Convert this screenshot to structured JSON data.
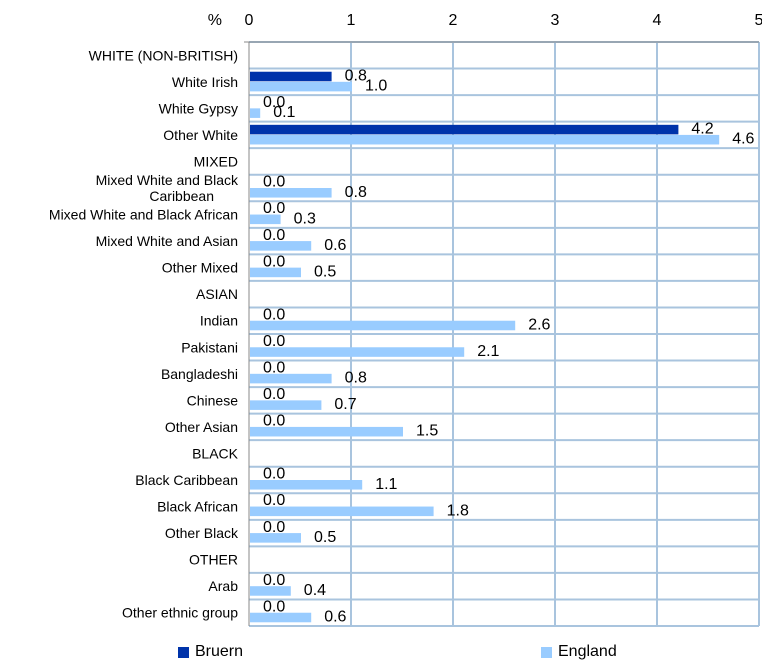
{
  "chart_data": {
    "type": "bar",
    "orientation": "horizontal",
    "unit_label": "%",
    "xlim": [
      0,
      5
    ],
    "x_ticks": [
      0,
      1,
      2,
      3,
      4,
      5
    ],
    "grid": true,
    "legend_position": "bottom",
    "categories": [
      "WHITE (NON-BRITISH)",
      "White Irish",
      "White Gypsy",
      "Other White",
      "MIXED",
      "Mixed White and Black Caribbean",
      "Mixed White and Black African",
      "Mixed White and Asian",
      "Other Mixed",
      "ASIAN",
      "Indian",
      "Pakistani",
      "Bangladeshi",
      "Chinese",
      "Other Asian",
      "BLACK",
      "Black Caribbean",
      "Black African",
      "Other Black",
      "OTHER",
      "Arab",
      "Other ethnic group"
    ],
    "series": [
      {
        "name": "Bruern",
        "color": "#0033aa",
        "values": [
          null,
          0.8,
          0.0,
          4.2,
          null,
          0.0,
          0.0,
          0.0,
          0.0,
          null,
          0.0,
          0.0,
          0.0,
          0.0,
          0.0,
          null,
          0.0,
          0.0,
          0.0,
          null,
          0.0,
          0.0
        ],
        "labels": [
          "",
          "0.8",
          "0.0",
          "4.2",
          "",
          "0.0",
          "0.0",
          "0.0",
          "0.0",
          "",
          "0.0",
          "0.0",
          "0.0",
          "0.0",
          "0.0",
          "",
          "0.0",
          "0.0",
          "0.0",
          "",
          "0.0",
          "0.0"
        ]
      },
      {
        "name": "England",
        "color": "#99ccff",
        "values": [
          null,
          1.0,
          0.1,
          4.6,
          null,
          0.8,
          0.3,
          0.6,
          0.5,
          null,
          2.6,
          2.1,
          0.8,
          0.7,
          1.5,
          null,
          1.1,
          1.8,
          0.5,
          null,
          0.4,
          0.6
        ],
        "labels": [
          "",
          "1.0",
          "0.1",
          "4.6",
          "",
          "0.8",
          "0.3",
          "0.6",
          "0.5",
          "",
          "2.6",
          "2.1",
          "0.8",
          "0.7",
          "1.5",
          "",
          "1.1",
          "1.8",
          "0.5",
          "",
          "0.4",
          "0.6"
        ]
      }
    ]
  },
  "colors": {
    "grid": "#a9c4de",
    "axis": "#888888"
  }
}
